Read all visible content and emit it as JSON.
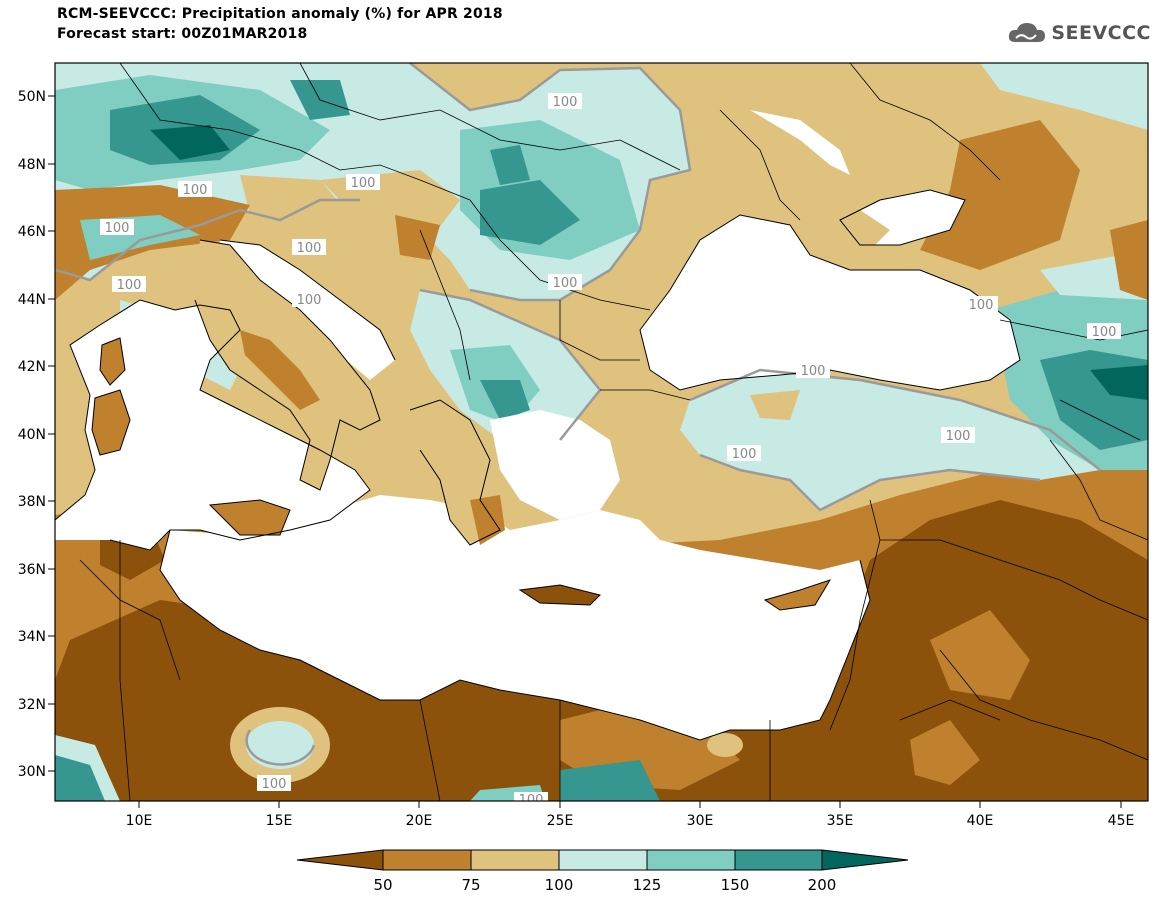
{
  "header": {
    "title": "RCM-SEEVCCC: Precipitation anomaly (%) for APR 2018",
    "subtitle": "Forecast start: 00Z01MAR2018",
    "logo_text": "SEEVCCC",
    "logo_icon": "cloud-icon"
  },
  "map": {
    "lat_labels": [
      "50N",
      "48N",
      "46N",
      "44N",
      "42N",
      "40N",
      "38N",
      "36N",
      "34N",
      "32N",
      "30N"
    ],
    "lon_labels": [
      "10E",
      "15E",
      "20E",
      "25E",
      "30E",
      "35E",
      "40E",
      "45E"
    ],
    "contour_label": "100",
    "colors": {
      "very_dry": "#8c510a",
      "dry": "#bf812d",
      "slightly_dry": "#dfc27d",
      "slightly_wet": "#c7eae5",
      "wet": "#80cdc1",
      "very_wet": "#35978f",
      "extreme_wet": "#01665e",
      "sea": "#ffffff"
    }
  },
  "legend": {
    "ticks": [
      "50",
      "75",
      "100",
      "125",
      "150",
      "200"
    ],
    "colors": [
      "#8c510a",
      "#bf812d",
      "#dfc27d",
      "#c7eae5",
      "#80cdc1",
      "#35978f",
      "#01665e"
    ]
  }
}
